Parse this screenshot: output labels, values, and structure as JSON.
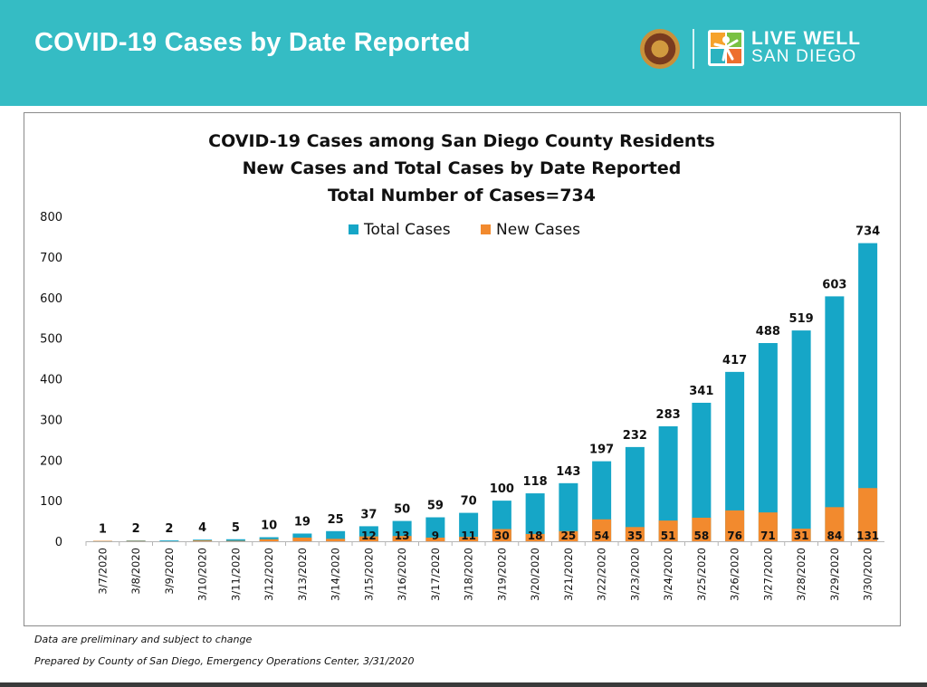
{
  "header": {
    "title": "COVID-19 Cases by Date Reported",
    "logo_line1": "LIVE WELL",
    "logo_line2": "SAN DIEGO",
    "seal_icon": "county-seal-icon",
    "logo_icon": "live-well-figure-icon",
    "background_color": "#35bcc4"
  },
  "chart_data": {
    "type": "bar",
    "stacked": "overlay",
    "title_lines": [
      "COVID-19 Cases among San Diego County Residents",
      "New Cases and Total Cases by Date Reported",
      "Total Number of Cases=734"
    ],
    "categories": [
      "3/7/2020",
      "3/8/2020",
      "3/9/2020",
      "3/10/2020",
      "3/11/2020",
      "3/12/2020",
      "3/13/2020",
      "3/14/2020",
      "3/15/2020",
      "3/16/2020",
      "3/17/2020",
      "3/18/2020",
      "3/19/2020",
      "3/20/2020",
      "3/21/2020",
      "3/22/2020",
      "3/23/2020",
      "3/24/2020",
      "3/25/2020",
      "3/26/2020",
      "3/27/2020",
      "3/28/2020",
      "3/29/2020",
      "3/30/2020"
    ],
    "series": [
      {
        "name": "Total Cases",
        "color": "#16a6c7",
        "values": [
          1,
          2,
          2,
          4,
          5,
          10,
          19,
          25,
          37,
          50,
          59,
          70,
          100,
          118,
          143,
          197,
          232,
          283,
          341,
          417,
          488,
          519,
          603,
          734
        ],
        "labels": [
          "1",
          "2",
          "2",
          "4",
          "5",
          "10",
          "19",
          "25",
          "37",
          "50",
          "59",
          "70",
          "100",
          "118",
          "143",
          "197",
          "232",
          "283",
          "341",
          "417",
          "488",
          "519",
          "603",
          "734"
        ]
      },
      {
        "name": "New Cases",
        "color": "#f28a2e",
        "values": [
          1,
          1,
          0,
          2,
          1,
          5,
          9,
          6,
          12,
          13,
          9,
          11,
          30,
          18,
          25,
          54,
          35,
          51,
          58,
          76,
          71,
          31,
          84,
          131
        ],
        "labels": [
          "",
          "",
          "",
          "",
          "",
          "",
          "",
          "",
          "12",
          "13",
          "9",
          "11",
          "30",
          "18",
          "25",
          "54",
          "35",
          "51",
          "58",
          "76",
          "71",
          "31",
          "84",
          "131"
        ]
      }
    ],
    "ylim": [
      0,
      800
    ],
    "yticks": [
      "0",
      "100",
      "200",
      "300",
      "400",
      "500",
      "600",
      "700",
      "800"
    ],
    "ytick_values": [
      0,
      100,
      200,
      300,
      400,
      500,
      600,
      700,
      800
    ],
    "legend_position": "top-center",
    "grid": false
  },
  "footnotes": {
    "line1": "Data are preliminary and subject to change",
    "line2": "Prepared by County of San Diego, Emergency Operations Center, 3/31/2020"
  }
}
